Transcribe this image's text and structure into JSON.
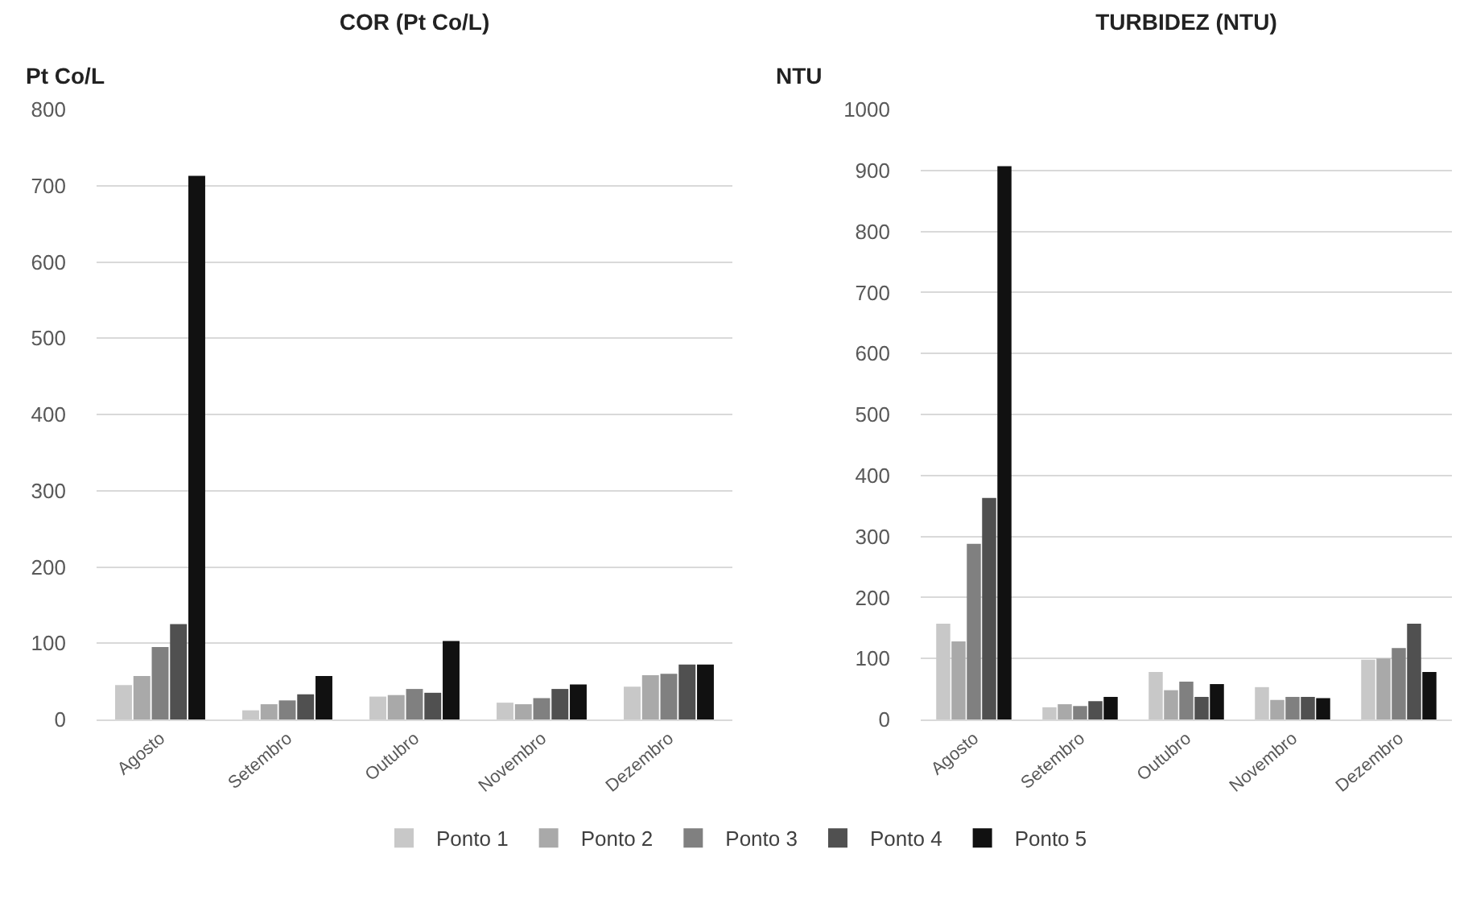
{
  "chart_data": [
    {
      "type": "bar",
      "title": "COR (Pt Co/L)",
      "ylabel": "Pt Co/L",
      "categories": [
        "Agosto",
        "Setembro",
        "Outubro",
        "Novembro",
        "Dezembro"
      ],
      "series": [
        {
          "name": "Ponto 1",
          "color": "#c8c8c8",
          "values": [
            45,
            12,
            30,
            22,
            43
          ]
        },
        {
          "name": "Ponto 2",
          "color": "#a9a9a9",
          "values": [
            57,
            20,
            32,
            20,
            58
          ]
        },
        {
          "name": "Ponto 3",
          "color": "#808080",
          "values": [
            95,
            25,
            40,
            28,
            60
          ]
        },
        {
          "name": "Ponto 4",
          "color": "#505050",
          "values": [
            125,
            33,
            35,
            40,
            72
          ]
        },
        {
          "name": "Ponto 5",
          "color": "#111111",
          "values": [
            713,
            57,
            103,
            46,
            72
          ]
        }
      ],
      "ylim": [
        0,
        800
      ],
      "yticks": [
        0,
        100,
        200,
        300,
        400,
        500,
        600,
        700,
        800
      ],
      "grid": "y",
      "legend": "bottom"
    },
    {
      "type": "bar",
      "title": "TURBIDEZ (NTU)",
      "ylabel": "NTU",
      "categories": [
        "Agosto",
        "Setembro",
        "Outubro",
        "Novembro",
        "Dezembro"
      ],
      "series": [
        {
          "color": "#c8c8c8",
          "values": [
            157,
            20,
            78,
            53,
            98
          ]
        },
        {
          "color": "#a9a9a9",
          "values": [
            128,
            25,
            48,
            32,
            100
          ]
        },
        {
          "color": "#808080",
          "values": [
            288,
            22,
            62,
            37,
            117
          ]
        },
        {
          "color": "#505050",
          "values": [
            363,
            30,
            37,
            37,
            157
          ]
        },
        {
          "color": "#111111",
          "values": [
            907,
            37,
            58,
            35,
            78
          ]
        }
      ],
      "ylim": [
        0,
        1000
      ],
      "yticks": [
        0,
        100,
        200,
        300,
        400,
        500,
        600,
        700,
        800,
        900,
        1000
      ],
      "grid": "y",
      "legend": false
    }
  ]
}
